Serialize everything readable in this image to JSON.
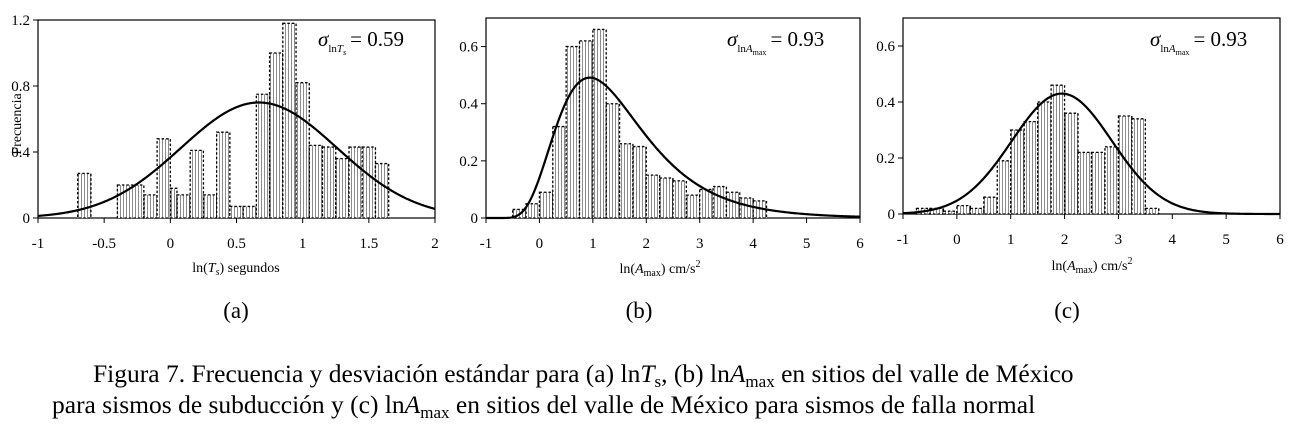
{
  "chart_data": [
    {
      "type": "bar",
      "panel_label": "(a)",
      "sigma_label": "0.59",
      "sigma_sub": "T",
      "sigma_subsub": "s",
      "ylabel": "Frecuencia",
      "xlabel_prefix": "ln(",
      "xlabel_var": "T",
      "xlabel_varsub": "s",
      "xlabel_suffix": ") segundos",
      "xlim": [
        -1,
        2
      ],
      "ylim": [
        0,
        1.2
      ],
      "xticks": [
        "-1",
        "-0.5",
        "0",
        "0.5",
        "1",
        "1.5",
        "2"
      ],
      "xtick_values": [
        -1,
        -0.5,
        0,
        0.5,
        1,
        1.5,
        2
      ],
      "yticks": [
        "0",
        "0.4",
        "0.8",
        "1.2"
      ],
      "ytick_values": [
        0,
        0.4,
        0.8,
        1.2
      ],
      "bins": [
        [
          -0.7,
          -0.6,
          0.27
        ],
        [
          -0.4,
          -0.2,
          0.2
        ],
        [
          -0.2,
          -0.1,
          0.14
        ],
        [
          -0.1,
          0.0,
          0.48
        ],
        [
          0.0,
          0.05,
          0.18
        ],
        [
          0.05,
          0.15,
          0.14
        ],
        [
          0.15,
          0.25,
          0.41
        ],
        [
          0.25,
          0.35,
          0.14
        ],
        [
          0.35,
          0.45,
          0.52
        ],
        [
          0.45,
          0.55,
          0.07
        ],
        [
          0.55,
          0.65,
          0.07
        ],
        [
          0.65,
          0.75,
          0.75
        ],
        [
          0.75,
          0.85,
          1.0
        ],
        [
          0.85,
          0.95,
          1.18
        ],
        [
          0.95,
          1.05,
          0.82
        ],
        [
          1.05,
          1.15,
          0.44
        ],
        [
          1.15,
          1.25,
          0.43
        ],
        [
          1.25,
          1.35,
          0.36
        ],
        [
          1.35,
          1.45,
          0.43
        ],
        [
          1.45,
          1.55,
          0.43
        ],
        [
          1.55,
          1.65,
          0.33
        ]
      ],
      "curve": {
        "mean": 0.67,
        "sd": 0.59,
        "peak": 0.7
      }
    },
    {
      "type": "bar",
      "panel_label": "(b)",
      "sigma_label": "0.93",
      "sigma_sub": "A",
      "sigma_subsub": "max",
      "ylabel": "",
      "xlabel_prefix": "ln(",
      "xlabel_var": "A",
      "xlabel_varsub": "max",
      "xlabel_suffix": ") cm/s",
      "xlabel_sup": "2",
      "xlim": [
        -1,
        6
      ],
      "ylim": [
        0,
        0.7
      ],
      "xticks": [
        "-1",
        "0",
        "1",
        "2",
        "3",
        "4",
        "5",
        "6"
      ],
      "xtick_values": [
        -1,
        0,
        1,
        2,
        3,
        4,
        5,
        6
      ],
      "yticks": [
        "0",
        "0.2",
        "0.4",
        "0.6"
      ],
      "ytick_values": [
        0,
        0.2,
        0.4,
        0.6
      ],
      "bins": [
        [
          -0.5,
          -0.25,
          0.03
        ],
        [
          -0.25,
          0.0,
          0.05
        ],
        [
          0.0,
          0.25,
          0.09
        ],
        [
          0.25,
          0.5,
          0.32
        ],
        [
          0.5,
          0.75,
          0.6
        ],
        [
          0.75,
          1.0,
          0.62
        ],
        [
          1.0,
          1.25,
          0.66
        ],
        [
          1.25,
          1.5,
          0.4
        ],
        [
          1.5,
          1.75,
          0.26
        ],
        [
          1.75,
          2.0,
          0.25
        ],
        [
          2.0,
          2.25,
          0.15
        ],
        [
          2.25,
          2.5,
          0.14
        ],
        [
          2.5,
          2.75,
          0.13
        ],
        [
          2.75,
          3.0,
          0.08
        ],
        [
          3.0,
          3.25,
          0.1
        ],
        [
          3.25,
          3.5,
          0.11
        ],
        [
          3.5,
          3.75,
          0.09
        ],
        [
          3.75,
          4.0,
          0.07
        ],
        [
          4.0,
          4.25,
          0.06
        ]
      ],
      "curve": {
        "type": "lognormal",
        "x0": -1.0,
        "mu": 0.84,
        "sigma": 0.42,
        "peak": 0.49,
        "mode": 1.0
      }
    },
    {
      "type": "bar",
      "panel_label": "(c)",
      "sigma_label": "0.93",
      "sigma_sub": "A",
      "sigma_subsub": "max",
      "ylabel": "",
      "xlabel_prefix": "ln(",
      "xlabel_var": "A",
      "xlabel_varsub": "max",
      "xlabel_suffix": ") cm/s",
      "xlabel_sup": "2",
      "xlim": [
        -1,
        6
      ],
      "ylim": [
        0,
        0.7
      ],
      "xticks": [
        "-1",
        "0",
        "1",
        "2",
        "3",
        "4",
        "5",
        "6"
      ],
      "xtick_values": [
        -1,
        0,
        1,
        2,
        3,
        4,
        5,
        6
      ],
      "yticks": [
        "0",
        "0.2",
        "0.4",
        "0.6"
      ],
      "ytick_values": [
        0,
        0.2,
        0.4,
        0.6
      ],
      "bins": [
        [
          -0.75,
          -0.5,
          0.02
        ],
        [
          -0.5,
          -0.25,
          0.02
        ],
        [
          -0.25,
          0.0,
          0.01
        ],
        [
          0.0,
          0.25,
          0.03
        ],
        [
          0.25,
          0.5,
          0.02
        ],
        [
          0.5,
          0.75,
          0.06
        ],
        [
          0.75,
          1.0,
          0.19
        ],
        [
          1.0,
          1.25,
          0.3
        ],
        [
          1.25,
          1.5,
          0.33
        ],
        [
          1.5,
          1.75,
          0.4
        ],
        [
          1.75,
          2.0,
          0.46
        ],
        [
          2.0,
          2.25,
          0.36
        ],
        [
          2.25,
          2.5,
          0.22
        ],
        [
          2.5,
          2.75,
          0.22
        ],
        [
          2.75,
          3.0,
          0.24
        ],
        [
          3.0,
          3.25,
          0.35
        ],
        [
          3.25,
          3.5,
          0.34
        ],
        [
          3.5,
          3.75,
          0.02
        ]
      ],
      "curve": {
        "mean": 1.95,
        "sd": 0.93,
        "peak": 0.43
      }
    }
  ],
  "caption": {
    "line1_a": "Figura 7. Frecuencia y desviación estándar para (a) ln",
    "line1_T": "T",
    "line1_s": "s",
    "line1_b": ", (b) ln",
    "line1_A": "A",
    "line1_max": "max",
    "line1_c": " en sitios del valle de México",
    "line2_a": "para sismos de subducción y (c) ln",
    "line2_A": "A",
    "line2_max": "max",
    "line2_b": " en sitios del valle de México para sismos de falla normal"
  }
}
